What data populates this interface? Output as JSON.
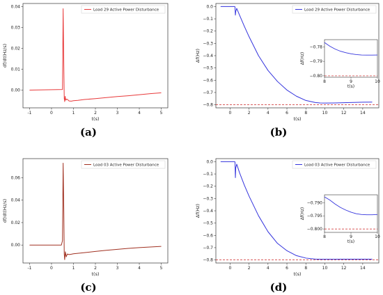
{
  "chart_data": [
    {
      "panel": "a",
      "type": "line",
      "caption": "(a)",
      "xlabel": "t(s)",
      "ylabel": "df/dt(Hz/s)",
      "xlim": [
        -1.3,
        5.3
      ],
      "ylim": [
        -0.0085,
        0.0415
      ],
      "xticks": [
        -1,
        0,
        1,
        2,
        3,
        4,
        5
      ],
      "yticks": [
        0.0,
        0.01,
        0.02,
        0.03,
        0.04
      ],
      "ytick_labels": [
        "0.00",
        "0.01",
        "0.02",
        "0.03",
        "0.04"
      ],
      "grid": false,
      "legend_position": "top-right",
      "series": [
        {
          "name": "Load 29 Active Power Disturbance",
          "color": "#e8393a",
          "x": [
            -1,
            0.5,
            0.53,
            0.56,
            0.58,
            0.6,
            0.62,
            0.65,
            0.7,
            0.75,
            0.8,
            0.9,
            1.0,
            1.2,
            1.5,
            2.0,
            2.5,
            3.0,
            3.5,
            4.0,
            4.5,
            5.0
          ],
          "y": [
            0.0,
            0.0003,
            0.039,
            0.012,
            -0.004,
            -0.0055,
            -0.003,
            -0.0048,
            -0.0043,
            -0.0047,
            -0.0052,
            -0.0053,
            -0.0051,
            -0.0049,
            -0.0045,
            -0.0041,
            -0.0036,
            -0.0031,
            -0.0027,
            -0.0022,
            -0.0017,
            -0.0013
          ]
        }
      ]
    },
    {
      "panel": "b",
      "type": "line",
      "caption": "(b)",
      "xlabel": "t(s)",
      "ylabel": "Δf(Hz)",
      "xlim": [
        -1.5,
        15.7
      ],
      "ylim": [
        -0.825,
        0.025
      ],
      "xticks": [
        0,
        2,
        4,
        6,
        8,
        10,
        12,
        14
      ],
      "yticks": [
        0.0,
        -0.1,
        -0.2,
        -0.3,
        -0.4,
        -0.5,
        -0.6,
        -0.7,
        -0.8
      ],
      "ytick_labels": [
        "0.0",
        "−0.1",
        "−0.2",
        "−0.3",
        "−0.4",
        "−0.5",
        "−0.6",
        "−0.7",
        "−0.8"
      ],
      "grid": false,
      "legend_position": "top-right",
      "reference_line": {
        "y": -0.8,
        "color": "#cc2222",
        "style": "dashed"
      },
      "series": [
        {
          "name": "Load 29 Active Power Disturbance",
          "color": "#3333dd",
          "x": [
            -1,
            0.5,
            0.52,
            0.56,
            0.6,
            0.7,
            1,
            1.5,
            2,
            3,
            4,
            5,
            6,
            7,
            8,
            9,
            9.5,
            10,
            11,
            12,
            13,
            14,
            15
          ],
          "y": [
            0.0,
            0.0,
            -0.005,
            -0.07,
            -0.04,
            -0.015,
            -0.07,
            -0.16,
            -0.245,
            -0.4,
            -0.52,
            -0.61,
            -0.68,
            -0.73,
            -0.765,
            -0.782,
            -0.785,
            -0.786,
            -0.785,
            -0.783,
            -0.781,
            -0.779,
            -0.778
          ]
        }
      ],
      "inset": {
        "xlabel": "t(s)",
        "ylabel": "Δf(Hz)",
        "xlim": [
          8,
          10
        ],
        "ylim": [
          -0.801,
          -0.775
        ],
        "xticks": [
          8,
          9,
          10
        ],
        "yticks": [
          -0.78,
          -0.79,
          -0.8
        ],
        "ytick_labels": [
          "−0.78",
          "−0.79",
          "−0.80"
        ],
        "reference_line": {
          "y": -0.8
        },
        "x": [
          8,
          8.2,
          8.4,
          8.6,
          8.8,
          9.0,
          9.2,
          9.4,
          9.6,
          9.8,
          10
        ],
        "y": [
          -0.777,
          -0.7795,
          -0.7815,
          -0.783,
          -0.784,
          -0.7848,
          -0.7853,
          -0.7856,
          -0.7857,
          -0.7857,
          -0.7856
        ]
      }
    },
    {
      "panel": "c",
      "type": "line",
      "caption": "(c)",
      "xlabel": "t(s)",
      "ylabel": "df/dt(Hz/s)",
      "xlim": [
        -1.3,
        5.3
      ],
      "ylim": [
        -0.016,
        0.077
      ],
      "xticks": [
        -1,
        0,
        1,
        2,
        3,
        4,
        5
      ],
      "yticks": [
        0.0,
        0.02,
        0.04,
        0.06
      ],
      "ytick_labels": [
        "0.00",
        "0.02",
        "0.04",
        "0.06"
      ],
      "grid": false,
      "legend_position": "top-right",
      "series": [
        {
          "name": "Load 03 Active Power Disturbance",
          "color": "#a03020",
          "x": [
            -1,
            0.45,
            0.5,
            0.53,
            0.56,
            0.58,
            0.6,
            0.63,
            0.67,
            0.72,
            0.8,
            0.9,
            1.0,
            1.5,
            2.0,
            2.5,
            3.0,
            3.5,
            4.0,
            4.5,
            5.0
          ],
          "y": [
            0.0,
            0.0,
            0.004,
            0.073,
            0.03,
            -0.008,
            -0.013,
            -0.006,
            -0.0105,
            -0.008,
            -0.0085,
            -0.0082,
            -0.0078,
            -0.0068,
            -0.0057,
            -0.0047,
            -0.0038,
            -0.003,
            -0.0023,
            -0.0017,
            -0.0012
          ]
        }
      ]
    },
    {
      "panel": "d",
      "type": "line",
      "caption": "(d)",
      "xlabel": "t(s)",
      "ylabel": "Δf(Hz)",
      "xlim": [
        -1.5,
        15.7
      ],
      "ylim": [
        -0.825,
        0.025
      ],
      "xticks": [
        0,
        2,
        4,
        6,
        8,
        10,
        12,
        14
      ],
      "yticks": [
        0.0,
        -0.1,
        -0.2,
        -0.3,
        -0.4,
        -0.5,
        -0.6,
        -0.7,
        -0.8
      ],
      "ytick_labels": [
        "0.0",
        "−0.1",
        "−0.2",
        "−0.3",
        "−0.4",
        "−0.5",
        "−0.6",
        "−0.7",
        "−0.8"
      ],
      "grid": false,
      "legend_position": "top-right",
      "reference_line": {
        "y": -0.8,
        "color": "#cc2222",
        "style": "dashed"
      },
      "series": [
        {
          "name": "Load 03 Active Power Disturbance",
          "color": "#3333dd",
          "x": [
            -1,
            0.5,
            0.52,
            0.56,
            0.6,
            0.7,
            1,
            1.5,
            2,
            3,
            4,
            5,
            6,
            7,
            8,
            9,
            9.5,
            10,
            11,
            12,
            13,
            14,
            15
          ],
          "y": [
            0.0,
            0.0,
            -0.005,
            -0.13,
            -0.05,
            -0.02,
            -0.09,
            -0.19,
            -0.28,
            -0.44,
            -0.57,
            -0.665,
            -0.725,
            -0.765,
            -0.785,
            -0.793,
            -0.7945,
            -0.7948,
            -0.7945,
            -0.7942,
            -0.794,
            -0.7938,
            -0.7935
          ]
        }
      ],
      "inset": {
        "xlabel": "t(s)",
        "ylabel": "Δf(Hz)",
        "xlim": [
          8,
          10
        ],
        "ylim": [
          -0.8013,
          -0.787
        ],
        "xticks": [
          8,
          9,
          10
        ],
        "yticks": [
          -0.79,
          -0.795,
          -0.8
        ],
        "ytick_labels": [
          "−0.790",
          "−0.795",
          "−0.800"
        ],
        "reference_line": {
          "y": -0.8
        },
        "x": [
          8,
          8.2,
          8.4,
          8.6,
          8.8,
          9.0,
          9.2,
          9.4,
          9.6,
          9.8,
          10
        ],
        "y": [
          -0.7878,
          -0.789,
          -0.7905,
          -0.7918,
          -0.7928,
          -0.7936,
          -0.7942,
          -0.7945,
          -0.7946,
          -0.7946,
          -0.7945
        ]
      }
    }
  ]
}
